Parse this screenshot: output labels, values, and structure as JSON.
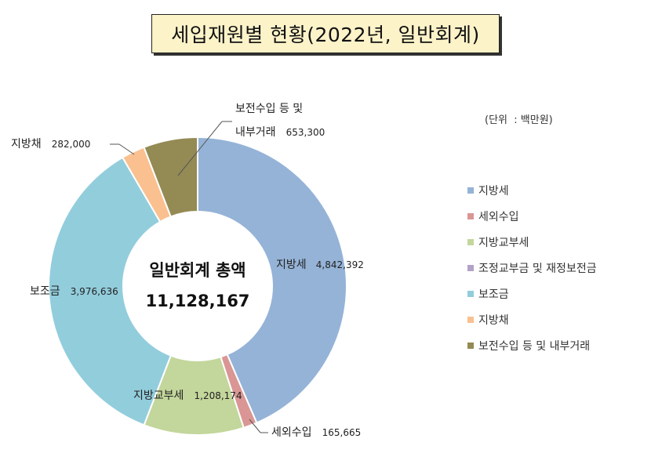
{
  "title": "세입재원별  현황(2022년,  일반회계)",
  "unit_label": "(단위  : 백만원)",
  "center": {
    "line1": "일반회계 총액",
    "line2": "11,128,167"
  },
  "chart_data": {
    "type": "pie",
    "title": "세입재원별  현황(2022년,  일반회계)",
    "total": 11128167,
    "legend_position": "right",
    "categories": [
      "지방세",
      "세외수입",
      "지방교부세",
      "조정교부금 및 재정보전금",
      "보조금",
      "지방채",
      "보전수입 등 및 내부거래"
    ],
    "values": [
      4842392,
      165665,
      1208174,
      0,
      3976636,
      282000,
      653300
    ],
    "colors": [
      "#95b3d7",
      "#d99694",
      "#c3d69b",
      "#b3a2c7",
      "#92cddc",
      "#fac090",
      "#948a54"
    ],
    "data_labels": [
      {
        "name": "지방세",
        "value": "4,842,392"
      },
      {
        "name": "세외수입",
        "value": "165,665"
      },
      {
        "name": "지방교부세",
        "value": "1,208,174"
      },
      {
        "name": "",
        "value": ""
      },
      {
        "name": "보조금",
        "value": "3,976,636"
      },
      {
        "name": "지방채",
        "value": "282,000"
      },
      {
        "name": "보전수입 등 및",
        "name2": "내부거래",
        "value": "653,300"
      }
    ]
  },
  "legend": [
    {
      "label": "지방세",
      "color": "#95b3d7"
    },
    {
      "label": "세외수입",
      "color": "#d99694"
    },
    {
      "label": "지방교부세",
      "color": "#c3d69b"
    },
    {
      "label": "조정교부금 및 재정보전금",
      "color": "#b3a2c7"
    },
    {
      "label": "보조금",
      "color": "#92cddc"
    },
    {
      "label": "지방채",
      "color": "#fac090"
    },
    {
      "label": "보전수입 등 및 내부거래",
      "color": "#948a54"
    }
  ]
}
